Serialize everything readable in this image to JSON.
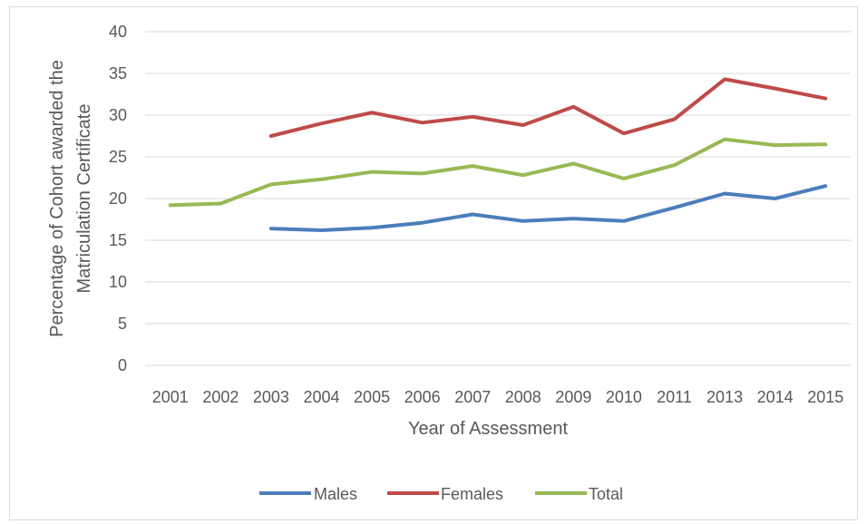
{
  "chart_data": {
    "type": "line",
    "title": "",
    "xlabel": "Year of Assessment",
    "ylabel_lines": [
      "Percentage of Cohort awarded the",
      "Matriculation Certificate"
    ],
    "categories": [
      "2001",
      "2002",
      "2003",
      "2004",
      "2005",
      "2006",
      "2007",
      "2008",
      "2009",
      "2010",
      "2011",
      "2013",
      "2014",
      "2015"
    ],
    "ylim": [
      0,
      40
    ],
    "yticks": [
      0,
      5,
      10,
      15,
      20,
      25,
      30,
      35,
      40
    ],
    "grid": true,
    "legend_position": "bottom",
    "series": [
      {
        "name": "Males",
        "color": "#4a7ebb",
        "values": [
          null,
          null,
          16.4,
          16.2,
          16.5,
          17.1,
          18.1,
          17.3,
          17.6,
          17.3,
          18.9,
          20.6,
          20.0,
          21.5
        ]
      },
      {
        "name": "Females",
        "color": "#be4b48",
        "values": [
          null,
          null,
          27.5,
          29.0,
          30.3,
          29.1,
          29.8,
          28.8,
          31.0,
          27.8,
          29.5,
          34.3,
          33.2,
          32.0
        ]
      },
      {
        "name": "Total",
        "color": "#98b954",
        "values": [
          19.2,
          19.4,
          21.7,
          22.3,
          23.2,
          23.0,
          23.9,
          22.8,
          24.2,
          22.4,
          24.0,
          27.1,
          26.4,
          26.5
        ]
      }
    ]
  }
}
